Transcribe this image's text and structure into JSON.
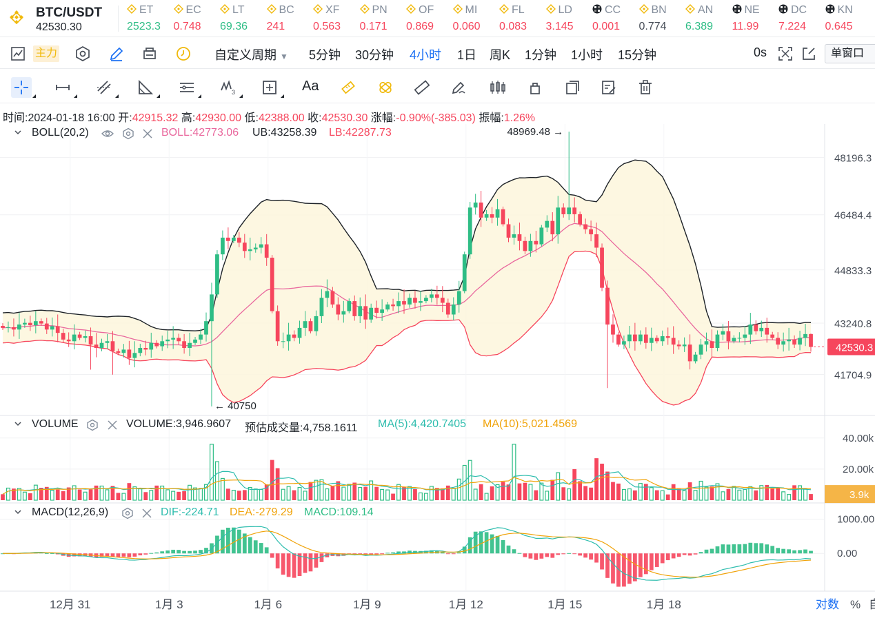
{
  "ticker": {
    "pair": "BTC/USDT",
    "price": "42530.30",
    "items": [
      {
        "symbol": "ET",
        "value": "2523.3",
        "trend": "up",
        "icon": "diamond-icon"
      },
      {
        "symbol": "EC",
        "value": "0.748",
        "trend": "down",
        "icon": "diamond-icon"
      },
      {
        "symbol": "LT",
        "value": "69.36",
        "trend": "up",
        "icon": "diamond-icon"
      },
      {
        "symbol": "BC",
        "value": "241",
        "trend": "down",
        "icon": "diamond-icon"
      },
      {
        "symbol": "XF",
        "value": "0.563",
        "trend": "down",
        "icon": "diamond-icon"
      },
      {
        "symbol": "PN",
        "value": "0.171",
        "trend": "down",
        "icon": "diamond-icon"
      },
      {
        "symbol": "OF",
        "value": "0.869",
        "trend": "down",
        "icon": "diamond-icon"
      },
      {
        "symbol": "MI",
        "value": "0.060",
        "trend": "down",
        "icon": "diamond-icon"
      },
      {
        "symbol": "FL",
        "value": "0.083",
        "trend": "down",
        "icon": "diamond-icon"
      },
      {
        "symbol": "LD",
        "value": "3.145",
        "trend": "down",
        "icon": "diamond-icon"
      },
      {
        "symbol": "CC",
        "value": "0.001",
        "trend": "down",
        "icon": "checker-icon"
      },
      {
        "symbol": "BN",
        "value": "0.774",
        "trend": "neutral",
        "icon": "diamond-icon"
      },
      {
        "symbol": "AN",
        "value": "6.389",
        "trend": "up",
        "icon": "diamond-icon"
      },
      {
        "symbol": "NE",
        "value": "11.99",
        "trend": "down",
        "icon": "checker-icon"
      },
      {
        "symbol": "DC",
        "value": "7.224",
        "trend": "down",
        "icon": "checker-icon"
      },
      {
        "symbol": "KN",
        "value": "0.645",
        "trend": "down",
        "icon": "checker-icon"
      }
    ]
  },
  "toolbar": {
    "main_badge": "主力",
    "custom_period": "自定义周期",
    "intervals": [
      "5分钟",
      "30分钟",
      "4小时",
      "1日",
      "周K",
      "1分钟",
      "1小时",
      "15分钟"
    ],
    "active_interval": "4小时",
    "timer": "0s",
    "window_mode": "单窗口"
  },
  "drawing_tools": {
    "text_tool": "Aa"
  },
  "candle_info": {
    "time_label": "时间:",
    "time": "2024-01-18 16:00",
    "open_label": "开:",
    "open": "42915.32",
    "high_label": "高:",
    "high": "42930.00",
    "low_label": "低:",
    "low": "42388.00",
    "close_label": "收:",
    "close": "42530.30",
    "change_label": "涨幅:",
    "change": "-0.90%(-385.03)",
    "amp_label": "振幅:",
    "amp": "1.26%"
  },
  "boll": {
    "name": "BOLL(20,2)",
    "mid": "BOLL:42773.06",
    "ub": "UB:43258.39",
    "lb": "LB:42287.73",
    "colors": {
      "mid": "#e9679d",
      "ub": "#1e2329",
      "lb": "#f6465d"
    }
  },
  "volume": {
    "name": "VOLUME",
    "value": "VOLUME:3,946.9607",
    "estimate": "预估成交量:4,758.1611",
    "ma5": "MA(5):4,420.7405",
    "ma10": "MA(10):5,021.4569",
    "axis": [
      "40.00k",
      "20.00k"
    ],
    "last_tag": "3.9k"
  },
  "macd": {
    "name": "MACD(12,26,9)",
    "dif": "DIF:-224.71",
    "dea": "DEA:-279.29",
    "macd": "MACD:109.14",
    "axis": [
      "1000.00",
      "0.00"
    ]
  },
  "price_axis": {
    "labels": [
      "48196.3",
      "46484.4",
      "44833.3",
      "43240.8",
      "41704.9"
    ],
    "last_price_tag": "42530.3",
    "high_marker": "48969.48 →",
    "low_marker": "← 40750"
  },
  "time_axis": {
    "labels": [
      "12月 31",
      "1月 3",
      "1月 6",
      "1月 9",
      "1月 12",
      "1月 15",
      "1月 18"
    ],
    "log_label": "对数",
    "pct_label": "%",
    "auto_label": "自"
  },
  "colors": {
    "up": "#2ebd85",
    "down": "#f6465d",
    "accent": "#1a6ff3",
    "brand": "#f0b90b"
  },
  "chart_data": {
    "type": "candlestick",
    "interval": "4小时",
    "y_range": [
      40500,
      49200
    ],
    "x_labels": [
      "12月 31",
      "1月 3",
      "1月 6",
      "1月 9",
      "1月 12",
      "1月 15",
      "1月 18"
    ],
    "candles_per_day": 6,
    "closes": [
      43100,
      43120,
      43050,
      43200,
      43250,
      43180,
      43300,
      43230,
      43050,
      43150,
      42950,
      42750,
      42700,
      42900,
      42800,
      42850,
      42600,
      42500,
      42650,
      42700,
      42400,
      42350,
      42450,
      42200,
      42350,
      42500,
      42450,
      42650,
      42550,
      42700,
      42750,
      42800,
      42700,
      42500,
      42650,
      42750,
      42900,
      43300,
      44100,
      45300,
      45800,
      45700,
      45800,
      45650,
      45400,
      45450,
      45500,
      45600,
      45200,
      43600,
      42700,
      42700,
      42900,
      42800,
      43100,
      43300,
      43000,
      43450,
      44000,
      44200,
      43800,
      43500,
      43600,
      43900,
      43450,
      43750,
      43350,
      43700,
      43550,
      43650,
      43800,
      43750,
      43900,
      43800,
      44000,
      43850,
      43900,
      44000,
      44100,
      44000,
      43850,
      43500,
      43800,
      44200,
      45300,
      46700,
      46850,
      46400,
      46500,
      46400,
      46650,
      46200,
      45800,
      45900,
      45700,
      45400,
      45700,
      45600,
      46100,
      46300,
      45900,
      46700,
      46500,
      46700,
      46500,
      46200,
      46050,
      45900,
      45500,
      44300,
      43200,
      42900,
      42600,
      42700,
      42900,
      42700,
      42900,
      42650,
      42800,
      42700,
      42850,
      42800,
      42600,
      42550,
      42600,
      42100,
      42300,
      42600,
      42700,
      42500,
      42900,
      43000,
      42700,
      42800,
      42800,
      42900,
      43200,
      43000,
      43100,
      42900,
      42800,
      42600,
      42700,
      42750,
      42600,
      42800,
      42915,
      42530
    ],
    "boll_mid_last": 42773.06,
    "boll_ub_last": 43258.39,
    "boll_lb_last": 42287.73,
    "volume_last": 3946.9607,
    "volume_ma5": 4420.7405,
    "volume_ma10": 5021.4569,
    "volume_range": [
      0,
      47000
    ],
    "macd_dif_last": -224.71,
    "macd_dea_last": -279.29,
    "macd_hist_last": 109.14,
    "macd_range": [
      -1100,
      1150
    ],
    "last_candle": {
      "open": 42915.32,
      "high": 42930.0,
      "low": 42388.0,
      "close": 42530.3
    },
    "period_high": 48969.48,
    "period_low": 40750
  }
}
